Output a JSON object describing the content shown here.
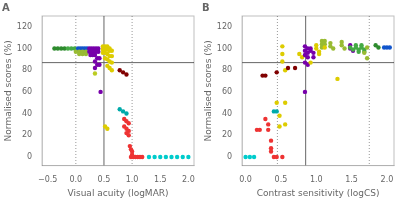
{
  "chart_data": [
    {
      "type": "scatter",
      "title": "A",
      "xlabel": "Visual acuity (logMAR)",
      "ylabel": "Normalised scores (%)",
      "xlim": [
        -0.6,
        2.1
      ],
      "ylim": [
        -8,
        130
      ],
      "xticks": [
        {
          "value": -0.5,
          "label": "−0.5"
        },
        {
          "value": 0.0,
          "label": "0.0"
        },
        0.5,
        {
          "value": 1.0,
          "label": "1.0"
        },
        1.5,
        {
          "value": 2.0,
          "label": "2.0"
        }
      ],
      "yticks": [
        0,
        20,
        40,
        60,
        80,
        100,
        120
      ],
      "grid": false,
      "lines": [
        {
          "axis": "y",
          "value": 87,
          "color": "#666666",
          "line_style": "solid"
        },
        {
          "axis": "x",
          "value": 0.5,
          "color": "#666666",
          "line_style": "solid"
        },
        {
          "axis": "x",
          "value": 0.0,
          "color": "#999999",
          "line_style": "dotted"
        },
        {
          "axis": "x",
          "value": 1.0,
          "color": "#999999",
          "line_style": "dotted"
        }
      ],
      "x": [
        -0.38,
        -0.32,
        -0.26,
        -0.2,
        -0.14,
        -0.08,
        -0.02,
        0.04,
        0.08,
        0.12,
        0.16,
        0.2,
        0.04,
        0.08,
        0.12,
        0.0,
        0.06,
        0.12,
        0.18,
        0.06,
        0.12,
        0.18,
        0.24,
        0.28,
        0.32,
        0.36,
        0.4,
        0.24,
        0.28,
        0.32,
        0.36,
        0.4,
        0.26,
        0.3,
        0.34,
        0.38,
        0.42,
        0.34,
        0.38,
        0.42,
        0.34,
        0.34,
        0.48,
        0.52,
        0.56,
        0.6,
        0.48,
        0.52,
        0.56,
        0.6,
        0.64,
        0.48,
        0.52,
        0.56,
        0.6,
        0.64,
        0.52,
        0.56,
        0.6,
        0.64,
        0.56,
        0.6,
        0.64,
        0.44,
        0.52,
        0.56,
        0.78,
        0.84,
        0.9,
        0.78,
        0.84,
        0.9,
        0.86,
        0.9,
        0.94,
        0.86,
        0.9,
        0.94,
        0.9,
        0.94,
        0.96,
        0.98,
        1.0,
        1.0,
        0.98,
        1.02,
        1.06,
        1.1,
        1.14,
        1.18,
        1.3,
        1.4,
        1.5,
        1.6,
        1.7,
        1.8,
        1.9,
        2.0
      ],
      "values": [
        100,
        100,
        100,
        100,
        100,
        100,
        100,
        100,
        100,
        100,
        100,
        100,
        98,
        98,
        98,
        97,
        97,
        97,
        97,
        95,
        95,
        95,
        100,
        100,
        100,
        100,
        100,
        97,
        97,
        97,
        97,
        97,
        94,
        94,
        94,
        91,
        91,
        88,
        85,
        85,
        82,
        77,
        102,
        102,
        102,
        100,
        99,
        99,
        99,
        98,
        98,
        96,
        96,
        95,
        93,
        93,
        91,
        90,
        88,
        87,
        84,
        82,
        80,
        60,
        28,
        26,
        80,
        78,
        76,
        44,
        42,
        40,
        35,
        33,
        31,
        28,
        26,
        24,
        22,
        20,
        10,
        7,
        5,
        2,
        0,
        0,
        0,
        0,
        0,
        0,
        0,
        0,
        0,
        0,
        0,
        0,
        0,
        0
      ],
      "colors": [
        "#2e8b2e",
        "#2e8b2e",
        "#2e8b2e",
        "#2e8b2e",
        "#44aa44",
        "#44aa44",
        "#44aa44",
        "#1155cc",
        "#1155cc",
        "#1155cc",
        "#1155cc",
        "#1155cc",
        "#1155cc",
        "#1155cc",
        "#1155cc",
        "#99bb33",
        "#99bb33",
        "#99bb33",
        "#99bb33",
        "#99bb33",
        "#99bb33",
        "#99bb33",
        "#7700aa",
        "#7700aa",
        "#7700aa",
        "#7700aa",
        "#7700aa",
        "#7700aa",
        "#7700aa",
        "#7700aa",
        "#7700aa",
        "#7700aa",
        "#7700aa",
        "#7700aa",
        "#7700aa",
        "#7700aa",
        "#7700aa",
        "#7700aa",
        "#7700aa",
        "#7700aa",
        "#7700aa",
        "#bbcc22",
        "#ddcc00",
        "#ddcc00",
        "#ddcc00",
        "#ddcc00",
        "#ddcc00",
        "#ddcc00",
        "#ddcc00",
        "#ddcc00",
        "#ddcc00",
        "#ddcc00",
        "#ddcc00",
        "#ddcc00",
        "#ddcc00",
        "#ddcc00",
        "#ddcc00",
        "#ddcc00",
        "#ddcc00",
        "#ddcc00",
        "#ddcc00",
        "#ddcc00",
        "#ddcc00",
        "#7700aa",
        "#ddcc00",
        "#ddcc00",
        "#800000",
        "#800000",
        "#800000",
        "#00aaaa",
        "#00aaaa",
        "#00aaaa",
        "#ee3333",
        "#ee3333",
        "#ee3333",
        "#ee3333",
        "#ee3333",
        "#ee3333",
        "#ee3333",
        "#ee3333",
        "#ee3333",
        "#ee3333",
        "#ee3333",
        "#ee3333",
        "#ee3333",
        "#ee3333",
        "#ee3333",
        "#ee3333",
        "#ee3333",
        "#ee3333",
        "#00cccc",
        "#00cccc",
        "#00cccc",
        "#00cccc",
        "#00cccc",
        "#00cccc",
        "#00cccc",
        "#00cccc"
      ]
    },
    {
      "type": "scatter",
      "title": "B",
      "xlabel": "Contrast sensitivity (logCS)",
      "ylabel": "Normalised scores (%)",
      "xlim": [
        -0.05,
        2.1
      ],
      "ylim": [
        -8,
        130
      ],
      "xticks": [
        {
          "value": 0.0,
          "label": "0.0"
        },
        0.5,
        {
          "value": 1.0,
          "label": "1.0"
        },
        1.5,
        {
          "value": 2.0,
          "label": "2.0"
        }
      ],
      "yticks": [
        0,
        20,
        40,
        60,
        80,
        100,
        120
      ],
      "grid": false,
      "lines": [
        {
          "axis": "y",
          "value": 87,
          "color": "#666666",
          "line_style": "solid"
        },
        {
          "axis": "x",
          "value": 0.85,
          "color": "#666666",
          "line_style": "solid"
        },
        {
          "axis": "x",
          "value": 0.45,
          "color": "#999999",
          "line_style": "dotted"
        },
        {
          "axis": "x",
          "value": 1.75,
          "color": "#999999",
          "line_style": "dotted"
        }
      ],
      "x": [
        0.0,
        0.06,
        0.12,
        0.16,
        0.2,
        0.24,
        0.28,
        0.28,
        0.32,
        0.32,
        0.36,
        0.36,
        0.36,
        0.4,
        0.4,
        0.44,
        0.44,
        0.44,
        0.48,
        0.48,
        0.44,
        0.52,
        0.52,
        0.52,
        0.56,
        0.56,
        0.52,
        0.56,
        0.6,
        0.7,
        0.76,
        0.8,
        0.84,
        0.88,
        0.84,
        0.88,
        0.84,
        0.88,
        0.84,
        0.88,
        0.84,
        0.92,
        0.92,
        0.96,
        0.96,
        0.92,
        1.0,
        1.0,
        1.04,
        1.04,
        1.08,
        1.08,
        1.08,
        1.12,
        1.12,
        1.12,
        1.2,
        1.2,
        1.24,
        1.3,
        1.36,
        1.36,
        1.4,
        1.48,
        1.48,
        1.52,
        1.48,
        1.52,
        1.56,
        1.56,
        1.6,
        1.6,
        1.64,
        1.64,
        1.68,
        1.68,
        1.68,
        1.72,
        1.72,
        1.84,
        1.88,
        1.96,
        2.0,
        2.04
      ],
      "values": [
        0,
        0,
        0,
        25,
        25,
        75,
        75,
        35,
        30,
        25,
        15,
        8,
        5,
        0,
        42,
        42,
        0,
        50,
        38,
        28,
        78,
        102,
        95,
        88,
        80,
        50,
        0,
        30,
        82,
        82,
        95,
        92,
        102,
        100,
        98,
        96,
        94,
        92,
        87,
        85,
        60,
        100,
        98,
        96,
        92,
        87,
        103,
        100,
        97,
        95,
        107,
        104,
        101,
        107,
        104,
        101,
        105,
        102,
        100,
        72,
        106,
        103,
        100,
        103,
        100,
        98,
        101,
        99,
        103,
        101,
        99,
        97,
        103,
        101,
        99,
        97,
        96,
        91,
        101,
        103,
        101,
        101,
        101,
        101
      ],
      "colors": [
        "#00cccc",
        "#00cccc",
        "#00cccc",
        "#ee3333",
        "#ee3333",
        "#800000",
        "#800000",
        "#ee3333",
        "#ee3333",
        "#ee3333",
        "#ee3333",
        "#ee3333",
        "#ee3333",
        "#ee3333",
        "#00aaaa",
        "#00aaaa",
        "#ee3333",
        "#ddcc00",
        "#ddcc00",
        "#ddcc00",
        "#800000",
        "#ddcc00",
        "#ddcc00",
        "#ddcc00",
        "#ddcc00",
        "#ddcc00",
        "#ee3333",
        "#ddcc00",
        "#800000",
        "#800000",
        "#ddcc00",
        "#ddcc00",
        "#7700aa",
        "#7700aa",
        "#7700aa",
        "#7700aa",
        "#7700aa",
        "#7700aa",
        "#7700aa",
        "#7700aa",
        "#7700aa",
        "#7700aa",
        "#7700aa",
        "#7700aa",
        "#7700aa",
        "#ddcc00",
        "#ddcc00",
        "#ddcc00",
        "#ddcc00",
        "#ddcc00",
        "#99bb33",
        "#99bb33",
        "#99bb33",
        "#99bb33",
        "#99bb33",
        "#ddcc00",
        "#99bb33",
        "#99bb33",
        "#99bb33",
        "#ddcc00",
        "#99bb33",
        "#99bb33",
        "#99bb33",
        "#7700aa",
        "#7700aa",
        "#7700aa",
        "#44aa44",
        "#44aa44",
        "#44aa44",
        "#44aa44",
        "#44aa44",
        "#44aa44",
        "#44aa44",
        "#44aa44",
        "#44aa44",
        "#44aa44",
        "#99bb33",
        "#99bb33",
        "#99bb33",
        "#2e8b2e",
        "#2e8b2e",
        "#1155cc",
        "#1155cc",
        "#1155cc"
      ]
    }
  ]
}
